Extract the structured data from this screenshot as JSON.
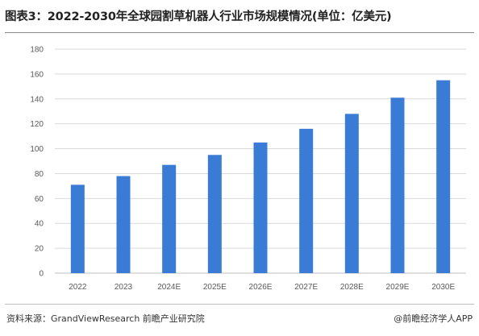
{
  "header": {
    "title": "图表3：2022-2030年全球园割草机器人行业市场规模情况(单位：亿美元)"
  },
  "footer": {
    "source": "资料来源：GrandViewResearch 前瞻产业研究院",
    "credit": "@前瞻经济学人APP"
  },
  "colors": {
    "bar": "#3a7bd5",
    "grid": "#d9d9d9",
    "axis": "#bfbfbf"
  },
  "chart_data": {
    "type": "bar",
    "categories": [
      "2022",
      "2023",
      "2024E",
      "2025E",
      "2026E",
      "2027E",
      "2028E",
      "2029E",
      "2030E"
    ],
    "values": [
      71,
      78,
      87,
      95,
      105,
      116,
      128,
      141,
      155
    ],
    "ylim": [
      0,
      180
    ],
    "yticks": [
      0,
      20,
      40,
      60,
      80,
      100,
      120,
      140,
      160,
      180
    ],
    "grid": true,
    "legend": "none"
  }
}
